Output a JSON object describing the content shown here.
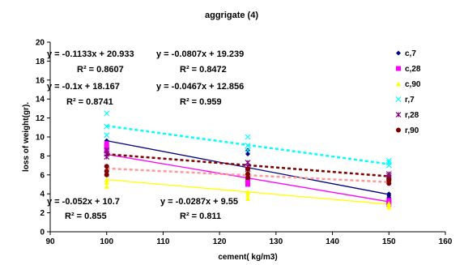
{
  "chart_data": {
    "type": "scatter",
    "title": "aggrigate (4)",
    "xlabel": "cement( kg/m3)",
    "ylabel": "loss of weight(gr).",
    "xlim": [
      90,
      160
    ],
    "ylim": [
      0,
      20
    ],
    "x_ticks": [
      "90",
      "100",
      "110",
      "120",
      "130",
      "140",
      "150",
      "160"
    ],
    "y_ticks": [
      "0",
      "2",
      "4",
      "6",
      "8",
      "10",
      "12",
      "14",
      "16",
      "18",
      "20"
    ],
    "grid": false,
    "legend_position": "right",
    "series": [
      {
        "name": "c,7",
        "color": "#000080",
        "marker": "diamond",
        "points": [
          [
            100,
            9.6
          ],
          [
            100,
            9.4
          ],
          [
            100,
            9.2
          ],
          [
            125,
            8.6
          ],
          [
            125,
            8.2
          ],
          [
            125,
            6.6
          ],
          [
            150,
            4.0
          ],
          [
            150,
            3.8
          ],
          [
            150,
            3.6
          ]
        ],
        "trend": {
          "slope": -0.1133,
          "intercept": 20.933,
          "style": "solid",
          "color": "#000080"
        }
      },
      {
        "name": "c,28",
        "color": "#ff00ff",
        "marker": "square",
        "points": [
          [
            100,
            9.3
          ],
          [
            100,
            8.9
          ],
          [
            100,
            8.5
          ],
          [
            125,
            5.6
          ],
          [
            125,
            5.3
          ],
          [
            125,
            5.0
          ],
          [
            150,
            3.3
          ],
          [
            150,
            3.1
          ],
          [
            150,
            2.9
          ]
        ],
        "trend": {
          "slope": -0.1,
          "intercept": 18.167,
          "style": "solid",
          "color": "#ff00ff"
        }
      },
      {
        "name": "c,90",
        "color": "#ffff00",
        "marker": "triangle",
        "points": [
          [
            100,
            5.5
          ],
          [
            100,
            5.2
          ],
          [
            100,
            4.8
          ],
          [
            125,
            4.2
          ],
          [
            125,
            3.9
          ],
          [
            125,
            3.5
          ],
          [
            150,
            3.0
          ],
          [
            150,
            2.8
          ],
          [
            150,
            2.6
          ]
        ],
        "trend": {
          "slope": -0.052,
          "intercept": 10.7,
          "style": "solid",
          "color": "#ffff00"
        }
      },
      {
        "name": "r,7",
        "color": "#00ffff",
        "marker": "x",
        "points": [
          [
            100,
            12.5
          ],
          [
            100,
            11.1
          ],
          [
            100,
            10.2
          ],
          [
            125,
            10.0
          ],
          [
            125,
            9.1
          ],
          [
            125,
            8.6
          ],
          [
            150,
            7.5
          ],
          [
            150,
            7.3
          ],
          [
            150,
            7.0
          ]
        ],
        "trend": {
          "slope": -0.0807,
          "intercept": 19.239,
          "style": "dashed",
          "color": "#00ffff"
        }
      },
      {
        "name": "r,28",
        "color": "#800080",
        "marker": "star",
        "points": [
          [
            100,
            8.6
          ],
          [
            100,
            8.2
          ],
          [
            100,
            7.9
          ],
          [
            125,
            7.3
          ],
          [
            125,
            6.9
          ],
          [
            125,
            6.6
          ],
          [
            150,
            6.1
          ],
          [
            150,
            5.9
          ],
          [
            150,
            5.7
          ]
        ],
        "trend": {
          "slope": -0.0467,
          "intercept": 12.856,
          "style": "dashed",
          "color": "#800000"
        }
      },
      {
        "name": "r,90",
        "color": "#800000",
        "marker": "circle",
        "points": [
          [
            100,
            6.9
          ],
          [
            100,
            6.4
          ],
          [
            100,
            6.0
          ],
          [
            125,
            6.6
          ],
          [
            125,
            6.1
          ],
          [
            125,
            5.7
          ],
          [
            150,
            5.6
          ],
          [
            150,
            5.4
          ],
          [
            150,
            5.1
          ]
        ],
        "trend": {
          "slope": -0.0287,
          "intercept": 9.55,
          "style": "dashed",
          "color": "#ff9999"
        }
      }
    ],
    "annotations": [
      {
        "equation": "y = -0.1133x + 20.933",
        "r2": "R² = 0.8607"
      },
      {
        "equation": "y = -0.0807x + 19.239",
        "r2": "R² = 0.8472"
      },
      {
        "equation": "y = -0.1x + 18.167",
        "r2": "R² = 0.8741"
      },
      {
        "equation": "y = -0.0467x + 12.856",
        "r2": "R² = 0.959"
      },
      {
        "equation": "y = -0.052x + 10.7",
        "r2": "R² = 0.855"
      },
      {
        "equation": "y = -0.0287x + 9.55",
        "r2": "R² = 0.811"
      }
    ]
  }
}
